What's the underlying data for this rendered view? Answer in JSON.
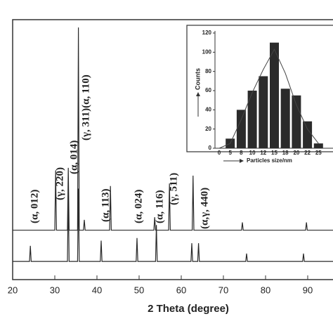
{
  "chart_data": [
    {
      "type": "line",
      "xlabel": "2 Theta (degree)",
      "xlim": [
        20,
        96
      ],
      "ylim": [
        0,
        100
      ],
      "xticks": [
        20,
        30,
        40,
        50,
        60,
        70,
        80,
        90
      ],
      "annotations": [
        "(α, 012)",
        "(γ, 220)",
        "(α, 014)",
        "(γ, 311)(α, 110)",
        "(α, 113)",
        "(α, 024)",
        "(α, 116)",
        "(γ, 511)",
        "(α,γ, 440)"
      ],
      "series": [
        {
          "color": "#2a2a2a",
          "x": [
            20,
            24,
            30,
            30.2,
            30.4,
            33,
            33.2,
            33.4,
            35.4,
            35.6,
            35.8,
            36.8,
            37,
            37.2,
            43,
            43.2,
            43.4,
            53.5,
            53.7,
            53.9,
            57,
            57.2,
            57.4,
            62.6,
            62.8,
            63,
            74.3,
            74.5,
            74.7,
            89.5,
            89.7,
            89.9,
            96
          ],
          "values": [
            19,
            19,
            19,
            42,
            19,
            19,
            43,
            19,
            19,
            97,
            19,
            19,
            23,
            19,
            19,
            36,
            19,
            19,
            24,
            19,
            19,
            37,
            19,
            19,
            40,
            19,
            19,
            22,
            19,
            19,
            22,
            19,
            19
          ]
        },
        {
          "color": "#2a2a2a",
          "x": [
            20,
            24,
            24.2,
            24.4,
            33,
            33.2,
            33.4,
            35.4,
            35.6,
            35.8,
            40.8,
            41,
            41.2,
            49.3,
            49.5,
            49.7,
            53.9,
            54.1,
            54.3,
            62.3,
            62.5,
            62.7,
            63.9,
            64.1,
            64.3,
            75.3,
            75.5,
            75.7,
            88.8,
            89,
            89.2,
            96
          ],
          "values": [
            7,
            7,
            13,
            7,
            7,
            33,
            7,
            7,
            35,
            7,
            7,
            15,
            7,
            7,
            16,
            7,
            7,
            21,
            7,
            7,
            14,
            7,
            7,
            14,
            7,
            7,
            10,
            7,
            7,
            10,
            7,
            7
          ]
        }
      ]
    },
    {
      "type": "bar",
      "ylabel": "Counts",
      "xlabel": "Particles size/nm",
      "color": "#2b2b2b",
      "categories": [
        "0",
        "5",
        "8",
        "10",
        "12",
        "15",
        "18",
        "20",
        "22",
        "25"
      ],
      "values": [
        0,
        10,
        40,
        60,
        75,
        110,
        62,
        55,
        28,
        5
      ],
      "curve_values": [
        0,
        5,
        30,
        58,
        82,
        103,
        78,
        45,
        20,
        5
      ],
      "ylim": [
        0,
        120
      ],
      "yticks": [
        0,
        20,
        40,
        60,
        80,
        100,
        120
      ]
    }
  ]
}
